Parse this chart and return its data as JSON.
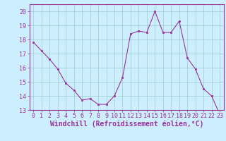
{
  "x": [
    0,
    1,
    2,
    3,
    4,
    5,
    6,
    7,
    8,
    9,
    10,
    11,
    12,
    13,
    14,
    15,
    16,
    17,
    18,
    19,
    20,
    21,
    22,
    23
  ],
  "y": [
    17.8,
    17.2,
    16.6,
    15.9,
    14.9,
    14.4,
    13.7,
    13.8,
    13.4,
    13.4,
    14.0,
    15.3,
    18.4,
    18.6,
    18.5,
    20.0,
    18.5,
    18.5,
    19.3,
    16.7,
    15.9,
    14.5,
    14.0,
    12.7
  ],
  "line_color": "#993399",
  "marker": "s",
  "marker_size": 2,
  "ylim": [
    13,
    20.5
  ],
  "xlim": [
    -0.5,
    23.5
  ],
  "yticks": [
    13,
    14,
    15,
    16,
    17,
    18,
    19,
    20
  ],
  "xticks": [
    0,
    1,
    2,
    3,
    4,
    5,
    6,
    7,
    8,
    9,
    10,
    11,
    12,
    13,
    14,
    15,
    16,
    17,
    18,
    19,
    20,
    21,
    22,
    23
  ],
  "xlabel": "Windchill (Refroidissement éolien,°C)",
  "background_color": "#cceeff",
  "grid_color": "#99cccc",
  "line_purple": "#993399",
  "tick_fontsize": 6,
  "xlabel_fontsize": 7
}
